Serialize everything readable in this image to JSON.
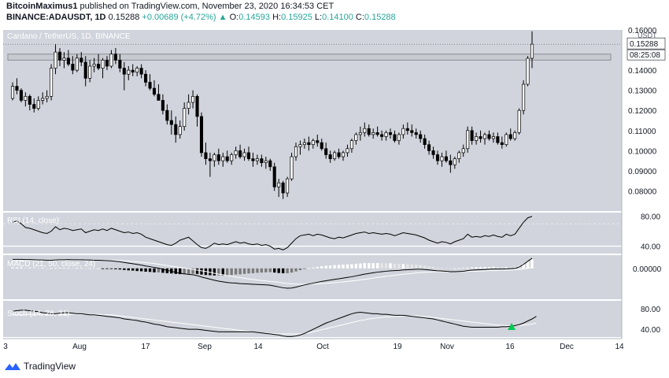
{
  "header": {
    "author": "BitcoinMaximus1",
    "published_text": "published on TradingView.com, November 23, 2020 16:34:53 CET",
    "symbol": "BINANCE:ADAUSDT, 1D",
    "last": "0.15288",
    "change": "+0.00689 (+4.72%)",
    "o_label": "O:",
    "o": "0.14593",
    "h_label": "H:",
    "h": "0.15925",
    "l_label": "L:",
    "l": "0.14100",
    "c_label": "C:",
    "c": "0.15288"
  },
  "footer": {
    "brand": "TradingView"
  },
  "chart_data": {
    "type": "candlestick",
    "title": "Cardano / TetherUS, 1D, BINANCE",
    "currency": "USDT",
    "price_label": "0.15288",
    "countdown_label": "08:25:08",
    "ylim": [
      0.07,
      0.16
    ],
    "yticks": [
      "0.08000",
      "0.09000",
      "0.10000",
      "0.11000",
      "0.12000",
      "0.13000",
      "0.14000",
      "0.16000"
    ],
    "xticks": [
      "3",
      "Aug",
      "17",
      "Sep",
      "14",
      "Oct",
      "19",
      "Nov",
      "16",
      "Dec",
      "14"
    ],
    "resistance_zone": [
      0.145,
      0.148
    ],
    "candles": [
      [
        0.126,
        0.134,
        0.125,
        0.132
      ],
      [
        0.132,
        0.136,
        0.128,
        0.13
      ],
      [
        0.13,
        0.131,
        0.124,
        0.125
      ],
      [
        0.125,
        0.129,
        0.122,
        0.127
      ],
      [
        0.127,
        0.128,
        0.12,
        0.123
      ],
      [
        0.123,
        0.126,
        0.119,
        0.121
      ],
      [
        0.121,
        0.127,
        0.12,
        0.125
      ],
      [
        0.125,
        0.129,
        0.123,
        0.126
      ],
      [
        0.126,
        0.13,
        0.124,
        0.127
      ],
      [
        0.127,
        0.143,
        0.125,
        0.141
      ],
      [
        0.141,
        0.153,
        0.138,
        0.149
      ],
      [
        0.149,
        0.151,
        0.142,
        0.145
      ],
      [
        0.145,
        0.149,
        0.141,
        0.146
      ],
      [
        0.146,
        0.15,
        0.142,
        0.143
      ],
      [
        0.143,
        0.147,
        0.138,
        0.14
      ],
      [
        0.14,
        0.148,
        0.139,
        0.146
      ],
      [
        0.146,
        0.149,
        0.142,
        0.144
      ],
      [
        0.144,
        0.147,
        0.132,
        0.136
      ],
      [
        0.136,
        0.145,
        0.134,
        0.142
      ],
      [
        0.142,
        0.146,
        0.139,
        0.143
      ],
      [
        0.143,
        0.148,
        0.14,
        0.141
      ],
      [
        0.141,
        0.146,
        0.136,
        0.145
      ],
      [
        0.145,
        0.147,
        0.14,
        0.142
      ],
      [
        0.142,
        0.15,
        0.141,
        0.148
      ],
      [
        0.148,
        0.151,
        0.143,
        0.145
      ],
      [
        0.145,
        0.148,
        0.139,
        0.141
      ],
      [
        0.141,
        0.144,
        0.13,
        0.138
      ],
      [
        0.138,
        0.142,
        0.135,
        0.14
      ],
      [
        0.14,
        0.143,
        0.137,
        0.139
      ],
      [
        0.139,
        0.142,
        0.137,
        0.141
      ],
      [
        0.141,
        0.143,
        0.136,
        0.138
      ],
      [
        0.138,
        0.14,
        0.132,
        0.134
      ],
      [
        0.134,
        0.138,
        0.13,
        0.131
      ],
      [
        0.131,
        0.135,
        0.127,
        0.128
      ],
      [
        0.128,
        0.133,
        0.125,
        0.125
      ],
      [
        0.125,
        0.128,
        0.118,
        0.12
      ],
      [
        0.12,
        0.123,
        0.113,
        0.115
      ],
      [
        0.115,
        0.12,
        0.108,
        0.113
      ],
      [
        0.113,
        0.117,
        0.104,
        0.108
      ],
      [
        0.108,
        0.115,
        0.106,
        0.112
      ],
      [
        0.112,
        0.124,
        0.11,
        0.121
      ],
      [
        0.121,
        0.128,
        0.118,
        0.124
      ],
      [
        0.124,
        0.13,
        0.121,
        0.127
      ],
      [
        0.127,
        0.128,
        0.112,
        0.117
      ],
      [
        0.117,
        0.119,
        0.097,
        0.099
      ],
      [
        0.099,
        0.104,
        0.093,
        0.096
      ],
      [
        0.096,
        0.099,
        0.087,
        0.095
      ],
      [
        0.095,
        0.099,
        0.092,
        0.098
      ],
      [
        0.098,
        0.101,
        0.093,
        0.095
      ],
      [
        0.095,
        0.099,
        0.092,
        0.097
      ],
      [
        0.097,
        0.1,
        0.094,
        0.095
      ],
      [
        0.095,
        0.099,
        0.093,
        0.098
      ],
      [
        0.098,
        0.102,
        0.096,
        0.1
      ],
      [
        0.1,
        0.103,
        0.096,
        0.097
      ],
      [
        0.097,
        0.101,
        0.095,
        0.099
      ],
      [
        0.099,
        0.102,
        0.095,
        0.096
      ],
      [
        0.096,
        0.099,
        0.092,
        0.095
      ],
      [
        0.095,
        0.098,
        0.093,
        0.096
      ],
      [
        0.096,
        0.098,
        0.092,
        0.094
      ],
      [
        0.094,
        0.097,
        0.091,
        0.095
      ],
      [
        0.095,
        0.096,
        0.09,
        0.092
      ],
      [
        0.092,
        0.094,
        0.08,
        0.082
      ],
      [
        0.082,
        0.086,
        0.077,
        0.084
      ],
      [
        0.084,
        0.085,
        0.076,
        0.079
      ],
      [
        0.079,
        0.087,
        0.077,
        0.086
      ],
      [
        0.086,
        0.099,
        0.085,
        0.097
      ],
      [
        0.097,
        0.104,
        0.095,
        0.102
      ],
      [
        0.102,
        0.105,
        0.098,
        0.103
      ],
      [
        0.103,
        0.106,
        0.101,
        0.104
      ],
      [
        0.104,
        0.107,
        0.1,
        0.103
      ],
      [
        0.103,
        0.106,
        0.101,
        0.105
      ],
      [
        0.105,
        0.108,
        0.102,
        0.104
      ],
      [
        0.104,
        0.106,
        0.1,
        0.101
      ],
      [
        0.101,
        0.104,
        0.096,
        0.098
      ],
      [
        0.098,
        0.1,
        0.094,
        0.096
      ],
      [
        0.096,
        0.1,
        0.095,
        0.099
      ],
      [
        0.099,
        0.101,
        0.096,
        0.097
      ],
      [
        0.097,
        0.1,
        0.095,
        0.099
      ],
      [
        0.099,
        0.103,
        0.097,
        0.101
      ],
      [
        0.101,
        0.106,
        0.099,
        0.105
      ],
      [
        0.105,
        0.109,
        0.103,
        0.108
      ],
      [
        0.108,
        0.112,
        0.105,
        0.109
      ],
      [
        0.109,
        0.114,
        0.107,
        0.111
      ],
      [
        0.111,
        0.113,
        0.107,
        0.108
      ],
      [
        0.108,
        0.111,
        0.106,
        0.109
      ],
      [
        0.109,
        0.112,
        0.107,
        0.108
      ],
      [
        0.108,
        0.11,
        0.105,
        0.107
      ],
      [
        0.107,
        0.11,
        0.105,
        0.109
      ],
      [
        0.109,
        0.111,
        0.106,
        0.108
      ],
      [
        0.108,
        0.11,
        0.104,
        0.105
      ],
      [
        0.105,
        0.109,
        0.103,
        0.108
      ],
      [
        0.108,
        0.113,
        0.106,
        0.111
      ],
      [
        0.111,
        0.114,
        0.108,
        0.11
      ],
      [
        0.11,
        0.113,
        0.107,
        0.109
      ],
      [
        0.109,
        0.111,
        0.106,
        0.108
      ],
      [
        0.108,
        0.11,
        0.104,
        0.106
      ],
      [
        0.106,
        0.108,
        0.101,
        0.103
      ],
      [
        0.103,
        0.105,
        0.098,
        0.1
      ],
      [
        0.1,
        0.102,
        0.096,
        0.098
      ],
      [
        0.098,
        0.1,
        0.093,
        0.095
      ],
      [
        0.095,
        0.099,
        0.092,
        0.097
      ],
      [
        0.097,
        0.1,
        0.094,
        0.095
      ],
      [
        0.095,
        0.098,
        0.089,
        0.093
      ],
      [
        0.093,
        0.097,
        0.091,
        0.096
      ],
      [
        0.096,
        0.1,
        0.094,
        0.099
      ],
      [
        0.099,
        0.103,
        0.097,
        0.101
      ],
      [
        0.101,
        0.112,
        0.099,
        0.11
      ],
      [
        0.11,
        0.112,
        0.103,
        0.105
      ],
      [
        0.105,
        0.109,
        0.103,
        0.107
      ],
      [
        0.107,
        0.11,
        0.104,
        0.106
      ],
      [
        0.106,
        0.109,
        0.103,
        0.108
      ],
      [
        0.108,
        0.11,
        0.105,
        0.106
      ],
      [
        0.106,
        0.109,
        0.104,
        0.107
      ],
      [
        0.107,
        0.109,
        0.103,
        0.104
      ],
      [
        0.104,
        0.107,
        0.101,
        0.103
      ],
      [
        0.103,
        0.109,
        0.102,
        0.108
      ],
      [
        0.108,
        0.111,
        0.105,
        0.106
      ],
      [
        0.106,
        0.11,
        0.105,
        0.109
      ],
      [
        0.109,
        0.121,
        0.108,
        0.12
      ],
      [
        0.12,
        0.135,
        0.118,
        0.133
      ],
      [
        0.133,
        0.147,
        0.132,
        0.1459
      ],
      [
        0.1459,
        0.1593,
        0.141,
        0.1529
      ]
    ],
    "rsi": {
      "label": "RSI (14, close)",
      "ylim": [
        30,
        85
      ],
      "yticks": [
        "80.00",
        "40.00"
      ],
      "band": [
        40,
        70
      ],
      "values": [
        72,
        74,
        70,
        65,
        64,
        62,
        60,
        58,
        57,
        60,
        66,
        62,
        64,
        63,
        61,
        62,
        63,
        58,
        60,
        62,
        61,
        63,
        61,
        64,
        62,
        60,
        58,
        59,
        57,
        58,
        56,
        52,
        50,
        48,
        46,
        44,
        42,
        41,
        44,
        48,
        50,
        52,
        47,
        42,
        38,
        37,
        40,
        44,
        42,
        43,
        42,
        44,
        46,
        44,
        45,
        43,
        42,
        43,
        41,
        42,
        40,
        36,
        37,
        35,
        38,
        44,
        50,
        54,
        55,
        56,
        54,
        56,
        55,
        53,
        51,
        50,
        52,
        51,
        53,
        55,
        57,
        58,
        59,
        57,
        58,
        57,
        56,
        57,
        56,
        54,
        56,
        58,
        57,
        56,
        55,
        53,
        51,
        48,
        46,
        44,
        46,
        45,
        43,
        46,
        48,
        50,
        56,
        52,
        53,
        52,
        54,
        53,
        55,
        53,
        52,
        56,
        54,
        56,
        64,
        72,
        78,
        80
      ]
    },
    "macd": {
      "label": "MACD (21, 50, close, 24)",
      "ylim": [
        -0.014,
        0.006
      ],
      "yticks": [
        "0.00000"
      ],
      "macd_line": [
        0.0041,
        0.0041,
        0.0041,
        0.004,
        0.004,
        0.0039,
        0.0038,
        0.0038,
        0.0037,
        0.0037,
        0.0038,
        0.0039,
        0.0039,
        0.004,
        0.0039,
        0.0039,
        0.0039,
        0.0038,
        0.0038,
        0.0037,
        0.0037,
        0.0036,
        0.0035,
        0.0034,
        0.0032,
        0.003,
        0.0027,
        0.0024,
        0.0021,
        0.0018,
        0.0015,
        0.0011,
        0.0008,
        0.0004,
        0.0001,
        -0.0004,
        -0.0009,
        -0.0013,
        -0.0018,
        -0.0022,
        -0.0025,
        -0.0027,
        -0.0029,
        -0.0033,
        -0.0039,
        -0.0044,
        -0.0049,
        -0.0054,
        -0.0058,
        -0.0061,
        -0.0064,
        -0.0066,
        -0.0067,
        -0.0069,
        -0.007,
        -0.0071,
        -0.0072,
        -0.0073,
        -0.0074,
        -0.0075,
        -0.0076,
        -0.008,
        -0.0084,
        -0.0088,
        -0.009,
        -0.0089,
        -0.0085,
        -0.008,
        -0.0075,
        -0.0071,
        -0.0067,
        -0.0063,
        -0.0059,
        -0.0056,
        -0.0053,
        -0.005,
        -0.0047,
        -0.0044,
        -0.0041,
        -0.0038,
        -0.0034,
        -0.003,
        -0.0026,
        -0.0023,
        -0.002,
        -0.0017,
        -0.0015,
        -0.0013,
        -0.0011,
        -0.001,
        -0.0009,
        -0.0007,
        -0.0006,
        -0.0005,
        -0.0004,
        -0.0004,
        -0.0005,
        -0.0007,
        -0.0009,
        -0.0011,
        -0.0012,
        -0.0013,
        -0.0015,
        -0.0015,
        -0.0014,
        -0.0013,
        -0.001,
        -0.0008,
        -0.0007,
        -0.0006,
        -0.0005,
        -0.0004,
        -0.0003,
        -0.0003,
        -0.0003,
        -0.0002,
        -0.0001,
        0.0,
        0.0006,
        0.0018,
        0.0032,
        0.0046
      ],
      "signal_line": [
        0.0036,
        0.0036,
        0.0036,
        0.0036,
        0.0036,
        0.0036,
        0.0036,
        0.0036,
        0.0036,
        0.0036,
        0.0036,
        0.0036,
        0.0036,
        0.0037,
        0.0037,
        0.0037,
        0.0037,
        0.0037,
        0.0037,
        0.0037,
        0.0037,
        0.0037,
        0.0037,
        0.0036,
        0.0036,
        0.0035,
        0.0034,
        0.0033,
        0.0031,
        0.003,
        0.0028,
        0.0026,
        0.0024,
        0.0022,
        0.0019,
        0.0016,
        0.0013,
        0.001,
        0.0007,
        0.0004,
        0.0001,
        -0.0002,
        -0.0005,
        -0.0008,
        -0.0011,
        -0.0014,
        -0.0018,
        -0.0022,
        -0.0026,
        -0.0029,
        -0.0033,
        -0.0036,
        -0.0039,
        -0.0042,
        -0.0045,
        -0.0048,
        -0.005,
        -0.0053,
        -0.0055,
        -0.0057,
        -0.0059,
        -0.0061,
        -0.0063,
        -0.0066,
        -0.0068,
        -0.007,
        -0.0071,
        -0.0072,
        -0.0072,
        -0.0072,
        -0.0071,
        -0.007,
        -0.0069,
        -0.0068,
        -0.0066,
        -0.0065,
        -0.0063,
        -0.0061,
        -0.0059,
        -0.0057,
        -0.0055,
        -0.0052,
        -0.005,
        -0.0047,
        -0.0044,
        -0.0041,
        -0.0039,
        -0.0036,
        -0.0034,
        -0.0031,
        -0.0029,
        -0.0027,
        -0.0025,
        -0.0023,
        -0.0021,
        -0.0019,
        -0.0018,
        -0.0017,
        -0.0016,
        -0.0015,
        -0.0015,
        -0.0015,
        -0.0015,
        -0.0015,
        -0.0015,
        -0.0015,
        -0.0014,
        -0.0013,
        -0.0013,
        -0.0012,
        -0.0011,
        -0.001,
        -0.001,
        -0.0009,
        -0.0008,
        -0.0008,
        -0.0007,
        -0.0006,
        -0.0005,
        -0.0003,
        0.0,
        0.0005
      ]
    },
    "stoch": {
      "label": "Stoch (14, 28, 21)",
      "ylim": [
        25,
        95
      ],
      "yticks": [
        "80.00",
        "40.00"
      ],
      "k": [
        75,
        76,
        77,
        77,
        76,
        75,
        74,
        72,
        71,
        70,
        70,
        71,
        72,
        72,
        71,
        70,
        70,
        69,
        68,
        68,
        67,
        66,
        65,
        64,
        63,
        62,
        60,
        59,
        58,
        57,
        55,
        54,
        52,
        50,
        49,
        47,
        45,
        44,
        43,
        42,
        41,
        40,
        40,
        40,
        39,
        38,
        37,
        36,
        35,
        35,
        35,
        35,
        35,
        35,
        35,
        35,
        35,
        34,
        33,
        32,
        31,
        30,
        29,
        27,
        26,
        26,
        27,
        29,
        32,
        36,
        40,
        44,
        48,
        52,
        55,
        58,
        61,
        64,
        67,
        70,
        72,
        73,
        72,
        71,
        70,
        70,
        69,
        69,
        68,
        67,
        67,
        67,
        66,
        65,
        64,
        63,
        62,
        61,
        60,
        58,
        56,
        54,
        52,
        50,
        48,
        46,
        45,
        44,
        44,
        44,
        44,
        44,
        44,
        44,
        45,
        45,
        46,
        47,
        49,
        52,
        56,
        60,
        65
      ],
      "d": [
        68,
        68,
        68,
        68,
        69,
        69,
        69,
        69,
        69,
        69,
        69,
        69,
        69,
        69,
        69,
        69,
        69,
        69,
        69,
        69,
        69,
        68,
        68,
        68,
        67,
        66,
        65,
        64,
        63,
        62,
        61,
        60,
        59,
        58,
        57,
        56,
        55,
        54,
        53,
        52,
        51,
        50,
        49,
        48,
        47,
        46,
        45,
        44,
        43,
        42,
        41,
        40,
        39,
        38,
        37,
        36,
        35,
        34,
        33,
        33,
        32,
        32,
        31,
        31,
        31,
        31,
        31,
        31,
        32,
        33,
        35,
        37,
        39,
        41,
        43,
        45,
        47,
        49,
        51,
        53,
        55,
        57,
        58,
        60,
        61,
        62,
        63,
        64,
        64,
        65,
        65,
        66,
        66,
        66,
        66,
        65,
        65,
        64,
        63,
        62,
        61,
        60,
        59,
        58,
        57,
        56,
        55,
        54,
        53,
        52,
        51,
        50,
        49,
        48,
        48,
        47,
        47,
        47,
        47,
        48,
        49,
        50,
        52
      ]
    }
  }
}
